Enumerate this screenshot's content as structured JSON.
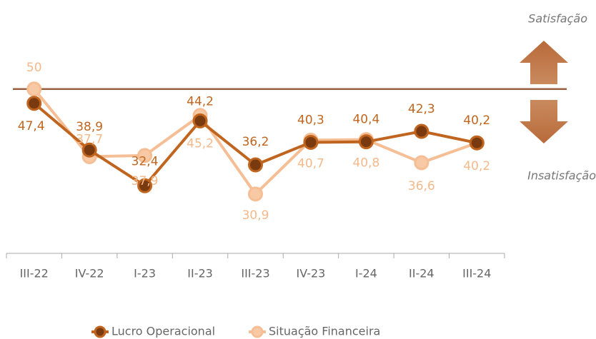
{
  "chart_data": {
    "type": "line",
    "categories": [
      "III-22",
      "IV-22",
      "I-23",
      "II-23",
      "III-23",
      "IV-23",
      "I-24",
      "II-24",
      "III-24"
    ],
    "series": [
      {
        "name": "Lucro Operacional",
        "color": "#c0651f",
        "marker": "#7a3a10",
        "values": [
          47.4,
          38.9,
          32.4,
          44.2,
          36.2,
          40.3,
          40.4,
          42.3,
          40.2
        ],
        "value_labels": [
          "47,4",
          "38,9",
          "32,4",
          "44,2",
          "36,2",
          "40,3",
          "40,4",
          "42,3",
          "40,2"
        ]
      },
      {
        "name": "Situação Financeira",
        "color": "#f5be94",
        "marker": "#f7c9a4",
        "values": [
          50,
          37.7,
          37.9,
          45.2,
          30.9,
          40.7,
          40.8,
          36.6,
          40.2
        ],
        "value_labels": [
          "50",
          "37,7",
          "37,9",
          "45,2",
          "30,9",
          "40,7",
          "40,8",
          "36,6",
          "40,2"
        ]
      }
    ],
    "reference_line": 50,
    "ylim": [
      20.1,
      66.2
    ],
    "annotations": [
      "Satisfação",
      "Insatisfação"
    ]
  }
}
